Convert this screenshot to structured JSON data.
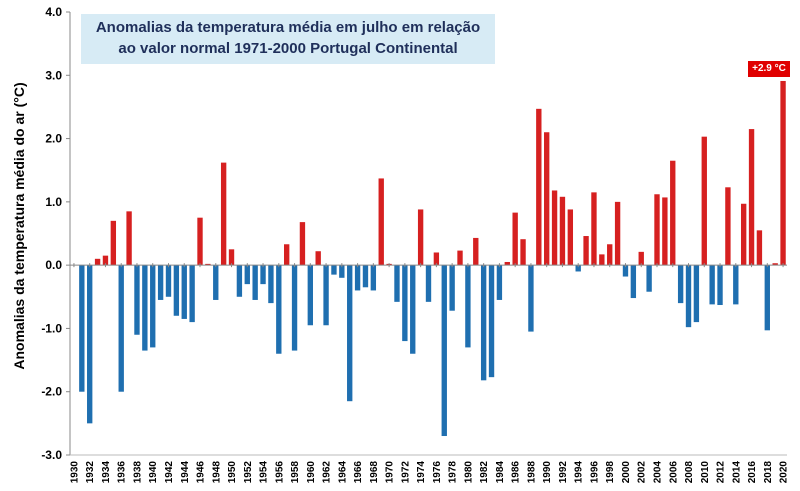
{
  "chart_data": {
    "type": "bar",
    "title": "Anomalias da temperatura média em julho em relação ao valor normal 1971-2000 Portugal Continental",
    "title_lines": [
      "Anomalias da temperatura média em julho em relação",
      "ao valor normal 1971-2000 Portugal Continental"
    ],
    "xlabel": "",
    "ylabel": "Anomalias da temperatura média do ar (°C)",
    "ylim": [
      -3.0,
      4.0
    ],
    "y_ticks": [
      "4.0",
      "3.0",
      "2.0",
      "1.0",
      "0.0",
      "-1.0",
      "-2.0",
      "-3.0"
    ],
    "y_tick_values": [
      4,
      3,
      2,
      1,
      0,
      -1,
      -2,
      -3
    ],
    "x_start": 1930,
    "x_end": 2020,
    "x_ticks": [
      "1930",
      "1932",
      "1934",
      "1936",
      "1938",
      "1940",
      "1942",
      "1944",
      "1946",
      "1948",
      "1950",
      "1952",
      "1954",
      "1956",
      "1958",
      "1960",
      "1962",
      "1964",
      "1966",
      "1968",
      "1970",
      "1972",
      "1974",
      "1976",
      "1978",
      "1980",
      "1982",
      "1984",
      "1986",
      "1988",
      "1990",
      "1992",
      "1994",
      "1996",
      "1998",
      "2000",
      "2002",
      "2004",
      "2006",
      "2008",
      "2010",
      "2012",
      "2014",
      "2016",
      "2018",
      "2020"
    ],
    "years": [
      1931,
      1932,
      1933,
      1934,
      1935,
      1936,
      1937,
      1938,
      1939,
      1940,
      1941,
      1942,
      1943,
      1944,
      1945,
      1946,
      1947,
      1948,
      1949,
      1950,
      1951,
      1952,
      1953,
      1954,
      1955,
      1956,
      1957,
      1958,
      1959,
      1960,
      1961,
      1962,
      1963,
      1964,
      1965,
      1966,
      1967,
      1968,
      1969,
      1970,
      1971,
      1972,
      1973,
      1974,
      1975,
      1976,
      1977,
      1978,
      1979,
      1980,
      1981,
      1982,
      1983,
      1984,
      1985,
      1986,
      1987,
      1988,
      1989,
      1990,
      1991,
      1992,
      1993,
      1994,
      1995,
      1996,
      1997,
      1998,
      1999,
      2000,
      2001,
      2002,
      2003,
      2004,
      2005,
      2006,
      2007,
      2008,
      2009,
      2010,
      2011,
      2012,
      2013,
      2014,
      2015,
      2016,
      2017,
      2018,
      2019,
      2020
    ],
    "values": [
      -2.0,
      -2.5,
      0.1,
      0.15,
      0.7,
      -2.0,
      0.85,
      -1.1,
      -1.35,
      -1.3,
      -0.55,
      -0.5,
      -0.8,
      -0.85,
      -0.9,
      0.75,
      0.02,
      -0.55,
      1.62,
      0.25,
      -0.5,
      -0.3,
      -0.55,
      -0.3,
      -0.6,
      -1.4,
      0.33,
      -1.35,
      0.68,
      -0.95,
      0.22,
      -0.95,
      -0.15,
      -0.2,
      -2.15,
      -0.4,
      -0.35,
      -0.4,
      1.37,
      0.02,
      -0.58,
      -1.2,
      -1.4,
      0.88,
      -0.58,
      0.2,
      -2.7,
      -0.72,
      0.23,
      -1.3,
      0.43,
      -1.82,
      -1.77,
      -0.55,
      0.05,
      0.83,
      0.41,
      -1.05,
      2.47,
      2.1,
      1.18,
      1.08,
      0.88,
      -0.1,
      0.46,
      1.15,
      0.17,
      0.33,
      1.0,
      -0.18,
      -0.52,
      0.21,
      -0.42,
      1.12,
      1.07,
      1.65,
      -0.6,
      -0.98,
      -0.9,
      2.03,
      -0.62,
      -0.63,
      1.23,
      -0.62,
      0.97,
      2.15,
      0.55,
      -1.03,
      0.03,
      2.91
    ],
    "positive_color": "#d62020",
    "negative_color": "#1f6fb0",
    "annotation": "+2.9 °C",
    "annotation_color": "#e00000",
    "grid": false
  }
}
